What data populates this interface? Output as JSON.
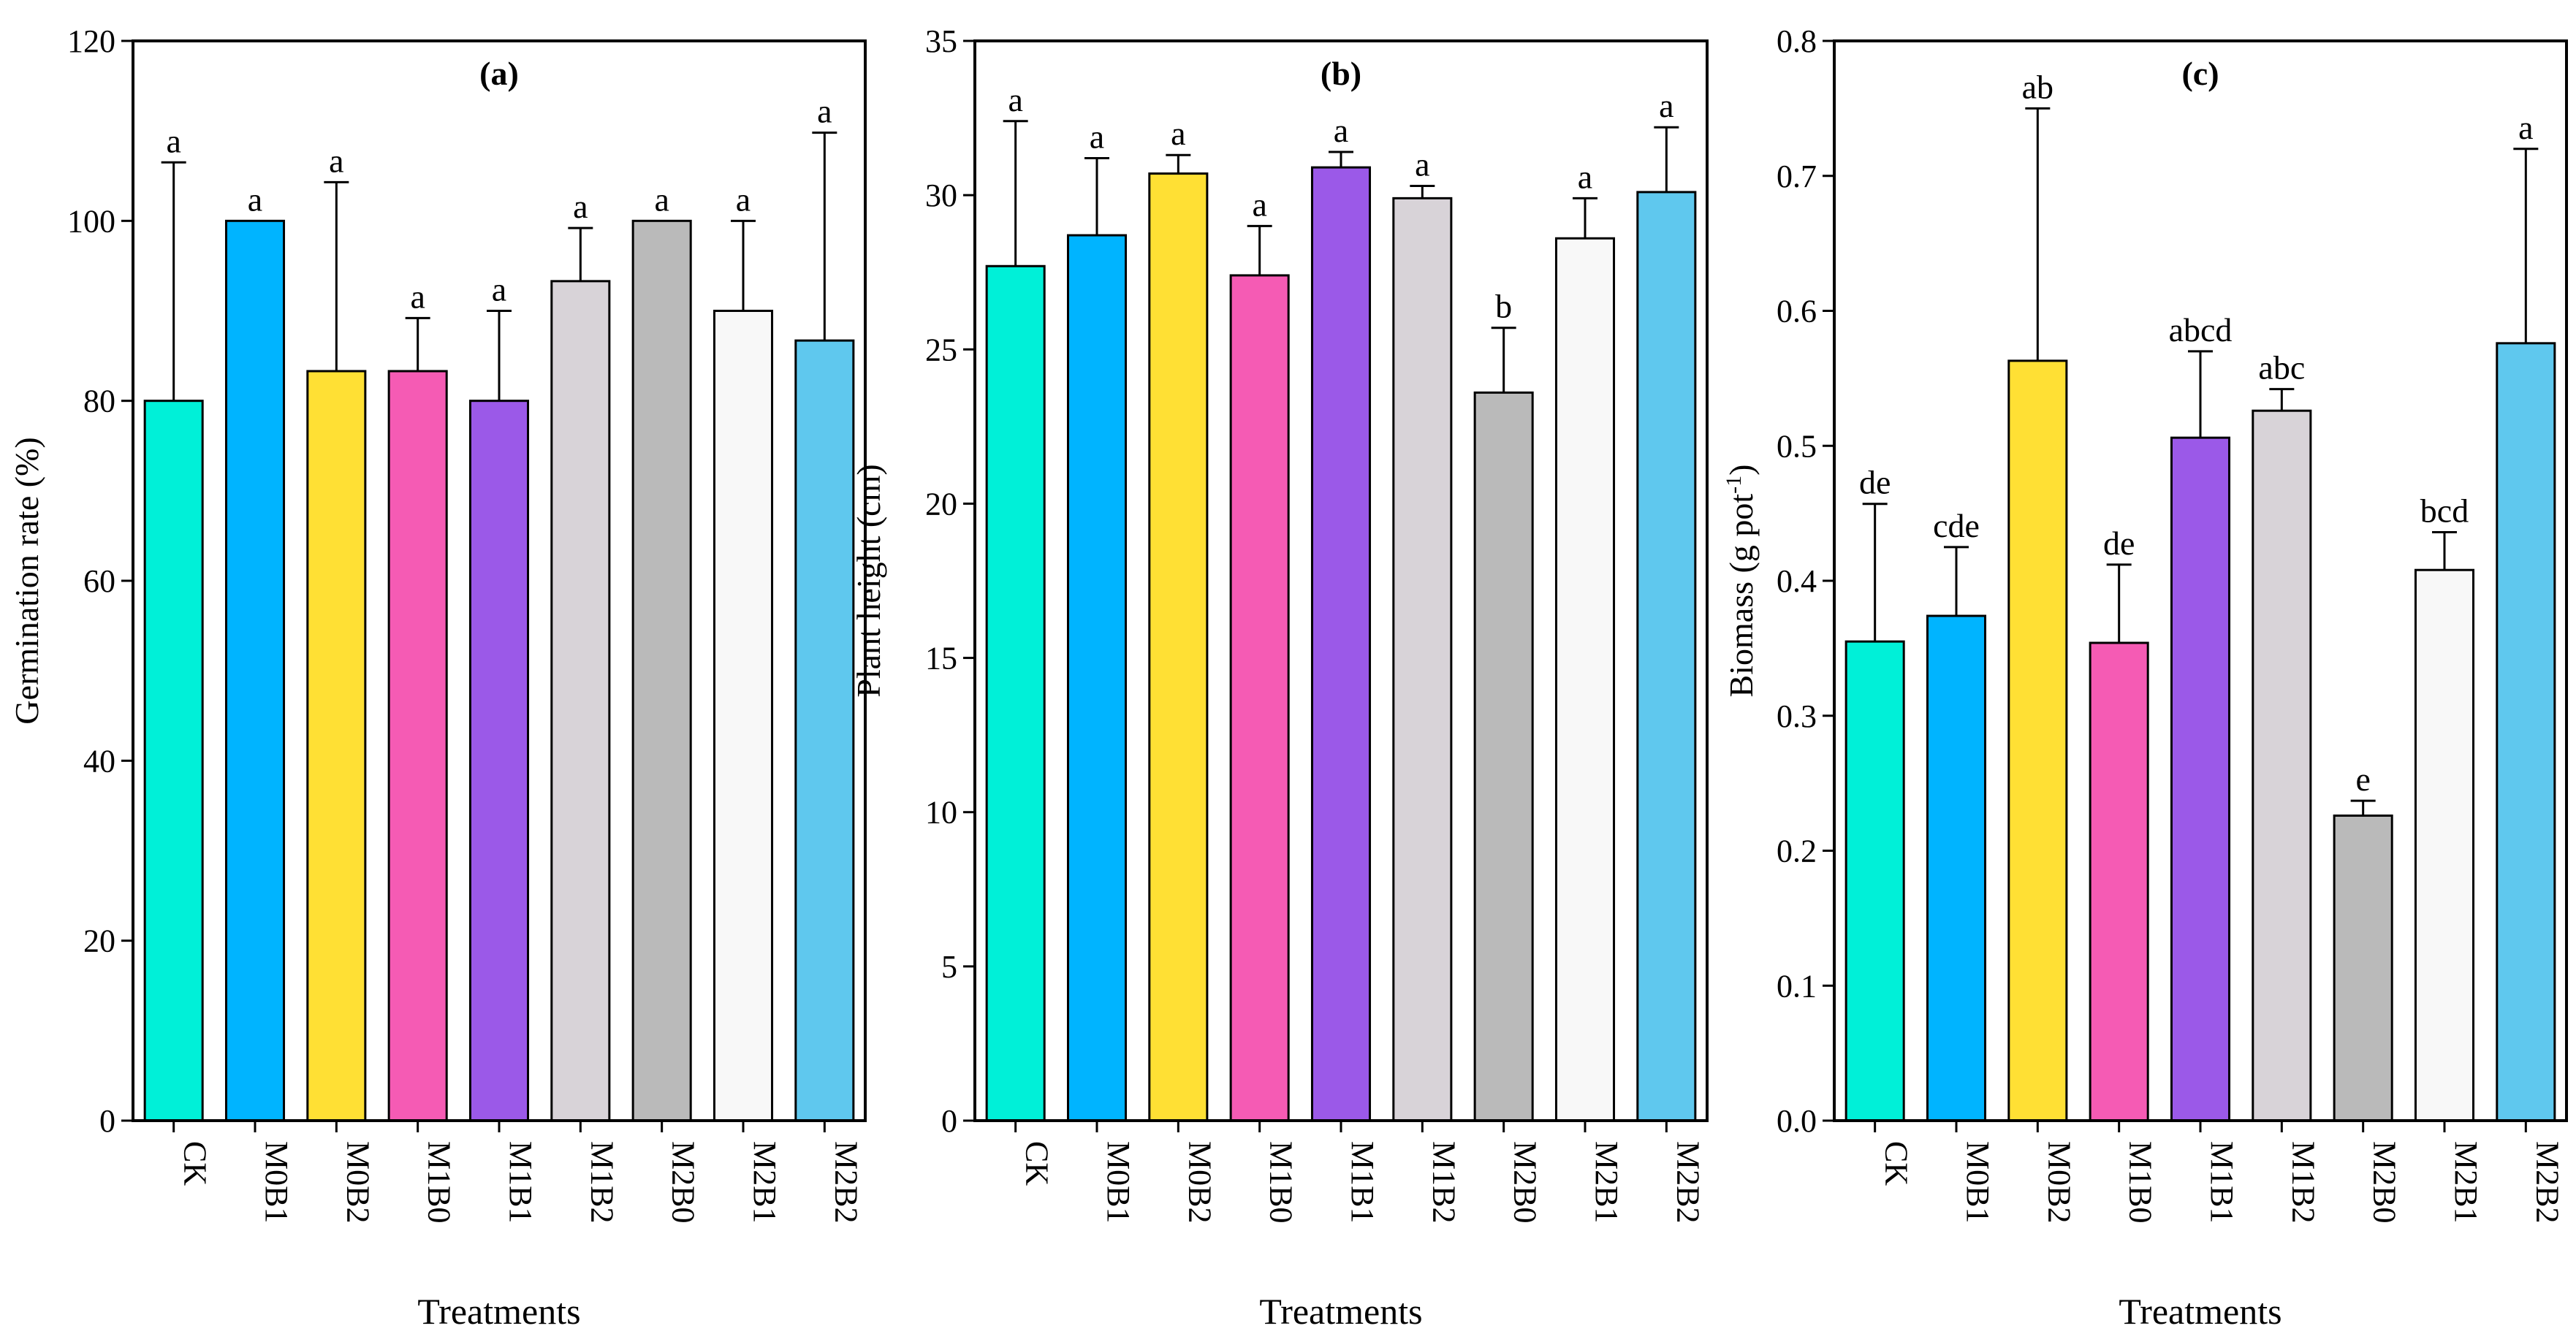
{
  "chart_data": [
    {
      "type": "bar",
      "panel_label": "(a)",
      "categories": [
        "CK",
        "M0B1",
        "M0B2",
        "M1B0",
        "M1B1",
        "M1B2",
        "M2B0",
        "M2B1",
        "M2B2"
      ],
      "values": [
        80,
        100,
        83.3,
        83.3,
        80,
        93.3,
        100,
        90,
        86.7
      ],
      "errors": [
        26.5,
        0,
        21,
        5.9,
        10,
        5.9,
        0,
        10,
        23.1
      ],
      "significance": [
        "a",
        "a",
        "a",
        "a",
        "a",
        "a",
        "a",
        "a",
        "a"
      ],
      "ylabel": "Germination rate (%)",
      "xlabel": "Treatments",
      "ylim": [
        0,
        120
      ],
      "yticks": [
        "0",
        "20",
        "40",
        "60",
        "80",
        "100",
        "120"
      ]
    },
    {
      "type": "bar",
      "panel_label": "(b)",
      "categories": [
        "CK",
        "M0B1",
        "M0B2",
        "M1B0",
        "M1B1",
        "M1B2",
        "M2B0",
        "M2B1",
        "M2B2"
      ],
      "values": [
        27.7,
        28.7,
        30.7,
        27.4,
        30.9,
        29.9,
        23.6,
        28.6,
        30.1
      ],
      "errors": [
        4.7,
        2.5,
        0.6,
        1.6,
        0.5,
        0.4,
        2.1,
        1.3,
        2.1
      ],
      "significance": [
        "a",
        "a",
        "a",
        "a",
        "a",
        "a",
        "b",
        "a",
        "a"
      ],
      "ylabel": "Plant height (cm)",
      "xlabel": "Treatments",
      "ylim": [
        0,
        35
      ],
      "yticks": [
        "0",
        "5",
        "10",
        "15",
        "20",
        "25",
        "30",
        "35"
      ]
    },
    {
      "type": "bar",
      "panel_label": "(c)",
      "categories": [
        "CK",
        "M0B1",
        "M0B2",
        "M1B0",
        "M1B1",
        "M1B2",
        "M2B0",
        "M2B1",
        "M2B2"
      ],
      "values": [
        0.355,
        0.374,
        0.563,
        0.354,
        0.506,
        0.526,
        0.226,
        0.408,
        0.576
      ],
      "errors": [
        0.102,
        0.051,
        0.187,
        0.058,
        0.064,
        0.016,
        0.011,
        0.028,
        0.144
      ],
      "significance": [
        "de",
        "cde",
        "ab",
        "de",
        "abcd",
        "abc",
        "e",
        "bcd",
        "a"
      ],
      "ylabel": "Biomass (g pot-1)",
      "ylabel_main": "Biomass (g pot",
      "ylabel_sup": "-1",
      "ylabel_end": ")",
      "xlabel": "Treatments",
      "ylim": [
        0,
        0.8
      ],
      "yticks": [
        "0.0",
        "0.1",
        "0.2",
        "0.3",
        "0.4",
        "0.5",
        "0.6",
        "0.7",
        "0.8"
      ]
    }
  ],
  "colors": [
    "#00F0D8",
    "#00B4FF",
    "#FFE034",
    "#F55BB4",
    "#9B59E8",
    "#D8D3D8",
    "#BABABA",
    "#F8F8F8",
    "#5FC8EE"
  ]
}
